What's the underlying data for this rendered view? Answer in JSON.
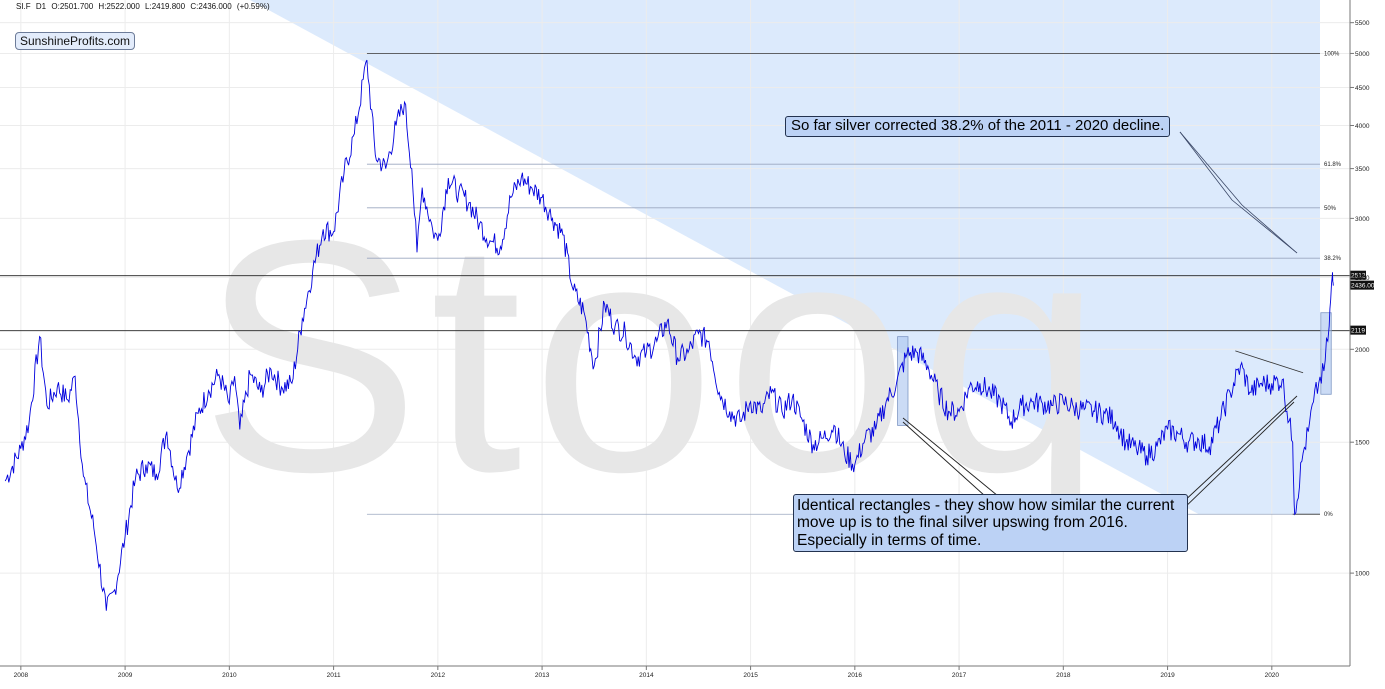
{
  "header": {
    "symbol": "SI.F",
    "interval": "D1",
    "open": "O:2501.700",
    "high": "H:2522.000",
    "low": "L:2419.800",
    "close": "C:2436.000",
    "change": "(+0.59%)"
  },
  "brand": "SunshineProfits.com",
  "watermark": "Stooq",
  "annotations": {
    "top": "So far silver corrected 38.2% of the 2011 - 2020 decline.",
    "bottom": [
      "Identical rectangles - they show how similar the current",
      "move up is to the final silver upswing from 2016.",
      "Especially in terms of time."
    ]
  },
  "colors": {
    "price_line": "#0000dd",
    "fib_fill": "#d6e6fb",
    "annotation_fill": "#bcd2f5",
    "background": "#ffffff"
  },
  "chart_data": {
    "type": "line",
    "title": "",
    "xlabel": "",
    "ylabel": "",
    "series": [
      {
        "name": "SI.F",
        "points": [
          [
            2007.85,
            1330
          ],
          [
            2008.0,
            1470
          ],
          [
            2008.08,
            1600
          ],
          [
            2008.18,
            2080
          ],
          [
            2008.25,
            1680
          ],
          [
            2008.35,
            1780
          ],
          [
            2008.45,
            1710
          ],
          [
            2008.52,
            1840
          ],
          [
            2008.6,
            1350
          ],
          [
            2008.7,
            1150
          ],
          [
            2008.82,
            890
          ],
          [
            2008.9,
            950
          ],
          [
            2009.0,
            1120
          ],
          [
            2009.1,
            1340
          ],
          [
            2009.2,
            1400
          ],
          [
            2009.3,
            1360
          ],
          [
            2009.4,
            1550
          ],
          [
            2009.5,
            1300
          ],
          [
            2009.6,
            1450
          ],
          [
            2009.7,
            1640
          ],
          [
            2009.8,
            1760
          ],
          [
            2009.9,
            1850
          ],
          [
            2010.0,
            1690
          ],
          [
            2010.05,
            1840
          ],
          [
            2010.1,
            1560
          ],
          [
            2010.2,
            1850
          ],
          [
            2010.3,
            1750
          ],
          [
            2010.4,
            1880
          ],
          [
            2010.5,
            1780
          ],
          [
            2010.6,
            1800
          ],
          [
            2010.7,
            2200
          ],
          [
            2010.8,
            2550
          ],
          [
            2010.9,
            2900
          ],
          [
            2011.0,
            2880
          ],
          [
            2011.1,
            3450
          ],
          [
            2011.2,
            3900
          ],
          [
            2011.32,
            4900
          ],
          [
            2011.4,
            3650
          ],
          [
            2011.5,
            3500
          ],
          [
            2011.6,
            4000
          ],
          [
            2011.68,
            4300
          ],
          [
            2011.75,
            3500
          ],
          [
            2011.8,
            2700
          ],
          [
            2011.85,
            3300
          ],
          [
            2011.95,
            2900
          ],
          [
            2012.0,
            2800
          ],
          [
            2012.1,
            3400
          ],
          [
            2012.2,
            3250
          ],
          [
            2012.3,
            3150
          ],
          [
            2012.4,
            2950
          ],
          [
            2012.5,
            2800
          ],
          [
            2012.6,
            2750
          ],
          [
            2012.7,
            3200
          ],
          [
            2012.8,
            3400
          ],
          [
            2012.9,
            3300
          ],
          [
            2013.0,
            3200
          ],
          [
            2013.1,
            3000
          ],
          [
            2013.2,
            2850
          ],
          [
            2013.3,
            2400
          ],
          [
            2013.4,
            2250
          ],
          [
            2013.5,
            1900
          ],
          [
            2013.6,
            2300
          ],
          [
            2013.7,
            2150
          ],
          [
            2013.8,
            2100
          ],
          [
            2013.9,
            1950
          ],
          [
            2014.0,
            1980
          ],
          [
            2014.1,
            2050
          ],
          [
            2014.2,
            2180
          ],
          [
            2014.3,
            1950
          ],
          [
            2014.4,
            1980
          ],
          [
            2014.5,
            2100
          ],
          [
            2014.6,
            2050
          ],
          [
            2014.7,
            1750
          ],
          [
            2014.8,
            1650
          ],
          [
            2014.9,
            1600
          ],
          [
            2015.0,
            1700
          ],
          [
            2015.1,
            1650
          ],
          [
            2015.2,
            1750
          ],
          [
            2015.3,
            1650
          ],
          [
            2015.4,
            1720
          ],
          [
            2015.5,
            1600
          ],
          [
            2015.6,
            1490
          ],
          [
            2015.7,
            1520
          ],
          [
            2015.8,
            1580
          ],
          [
            2015.9,
            1450
          ],
          [
            2016.0,
            1400
          ],
          [
            2016.1,
            1520
          ],
          [
            2016.2,
            1560
          ],
          [
            2016.3,
            1700
          ],
          [
            2016.4,
            1800
          ],
          [
            2016.5,
            1970
          ],
          [
            2016.6,
            1980
          ],
          [
            2016.7,
            1900
          ],
          [
            2016.8,
            1750
          ],
          [
            2016.9,
            1650
          ],
          [
            2017.0,
            1650
          ],
          [
            2017.1,
            1780
          ],
          [
            2017.2,
            1800
          ],
          [
            2017.3,
            1750
          ],
          [
            2017.4,
            1700
          ],
          [
            2017.5,
            1600
          ],
          [
            2017.6,
            1680
          ],
          [
            2017.7,
            1700
          ],
          [
            2017.8,
            1690
          ],
          [
            2017.9,
            1680
          ],
          [
            2018.0,
            1700
          ],
          [
            2018.1,
            1670
          ],
          [
            2018.2,
            1660
          ],
          [
            2018.3,
            1650
          ],
          [
            2018.4,
            1640
          ],
          [
            2018.5,
            1600
          ],
          [
            2018.6,
            1500
          ],
          [
            2018.7,
            1470
          ],
          [
            2018.8,
            1440
          ],
          [
            2018.9,
            1480
          ],
          [
            2019.0,
            1560
          ],
          [
            2019.1,
            1540
          ],
          [
            2019.2,
            1500
          ],
          [
            2019.3,
            1510
          ],
          [
            2019.4,
            1480
          ],
          [
            2019.5,
            1600
          ],
          [
            2019.6,
            1750
          ],
          [
            2019.7,
            1900
          ],
          [
            2019.8,
            1750
          ],
          [
            2019.9,
            1800
          ],
          [
            2020.0,
            1800
          ],
          [
            2020.1,
            1820
          ],
          [
            2020.2,
            1500
          ],
          [
            2020.22,
            1200
          ],
          [
            2020.3,
            1450
          ],
          [
            2020.35,
            1550
          ],
          [
            2020.4,
            1700
          ],
          [
            2020.45,
            1800
          ],
          [
            2020.5,
            1870
          ],
          [
            2020.55,
            2150
          ],
          [
            2020.58,
            2512
          ],
          [
            2020.59,
            2436
          ]
        ]
      }
    ],
    "x_ticks": [
      "2008",
      "2009",
      "2010",
      "2011",
      "2012",
      "2013",
      "2014",
      "2015",
      "2016",
      "2017",
      "2018",
      "2019",
      "2020"
    ],
    "xlim": [
      2007.8,
      2020.75
    ],
    "y_scale": "log",
    "ylim": [
      750,
      5900
    ],
    "y_ticks": [
      1000,
      1500,
      2000,
      2500,
      3000,
      3500,
      4000,
      4500,
      5000,
      5500
    ],
    "fibonacci": {
      "high": 5000,
      "low": 1200,
      "levels": [
        {
          "label": "100%",
          "value": 5000
        },
        {
          "label": "61.8%",
          "value": 3548
        },
        {
          "label": "50%",
          "value": 3100
        },
        {
          "label": "38.2%",
          "value": 2652
        },
        {
          "label": "0%",
          "value": 1200
        }
      ]
    },
    "horizontal_lines": [
      {
        "label": "2512",
        "value": 2512
      },
      {
        "label": "2119",
        "value": 2119
      }
    ],
    "last_price": {
      "label": "2436.00",
      "value": 2436
    },
    "rectangles": [
      {
        "x": [
          2016.41,
          2016.51
        ],
        "y": [
          1580,
          2080
        ]
      },
      {
        "x": [
          2020.47,
          2020.57
        ],
        "y": [
          1740,
          2240
        ]
      }
    ],
    "triangle_lines": [
      {
        "points": [
          [
            2019.65,
            1990
          ],
          [
            2020.3,
            1860
          ]
        ]
      }
    ],
    "grid": true,
    "legend": "none"
  }
}
